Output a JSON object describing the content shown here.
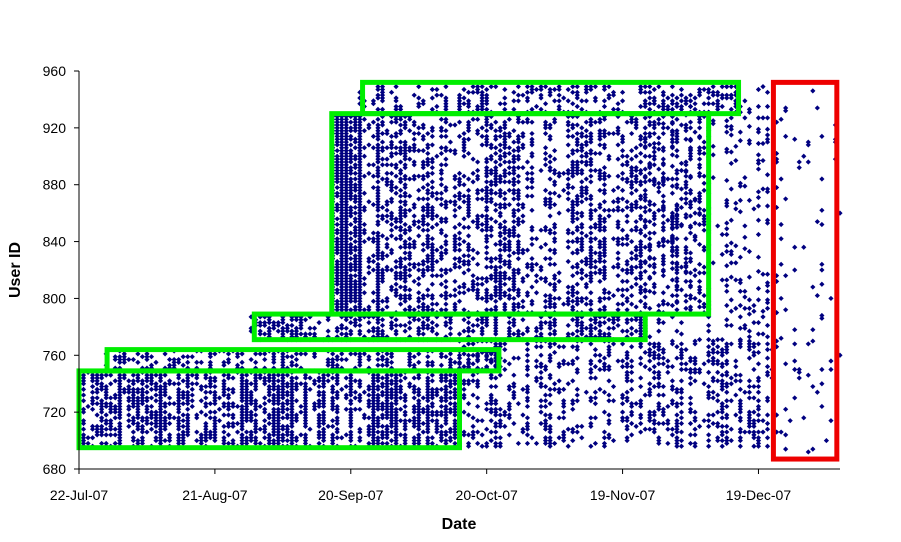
{
  "chart_data": {
    "type": "scatter",
    "title": "",
    "xlabel": "Date",
    "ylabel": "User ID",
    "x_units": "days since 22-Jul-07",
    "xlim": [
      0,
      168
    ],
    "ylim": [
      680,
      960
    ],
    "grid": false,
    "legend": "none",
    "marker": {
      "shape": "diamond",
      "color": "#000080"
    },
    "x_ticks": [
      {
        "value": 0,
        "label": "22-Jul-07"
      },
      {
        "value": 30,
        "label": "21-Aug-07"
      },
      {
        "value": 60,
        "label": "20-Sep-07"
      },
      {
        "value": 90,
        "label": "20-Oct-07"
      },
      {
        "value": 120,
        "label": "19-Nov-07"
      },
      {
        "value": 150,
        "label": "19-Dec-07"
      }
    ],
    "y_ticks": [
      {
        "value": 680,
        "label": "680"
      },
      {
        "value": 720,
        "label": "720"
      },
      {
        "value": 760,
        "label": "760"
      },
      {
        "value": 800,
        "label": "800"
      },
      {
        "value": 840,
        "label": "840"
      },
      {
        "value": 880,
        "label": "880"
      },
      {
        "value": 920,
        "label": "920"
      },
      {
        "value": 960,
        "label": "960"
      }
    ],
    "point_groups": [
      {
        "days": [
          0,
          84
        ],
        "ids": [
          696,
          748
        ],
        "density": 0.55
      },
      {
        "days": [
          6,
          92
        ],
        "ids": [
          749,
          763
        ],
        "density": 0.4
      },
      {
        "days": [
          38,
          125
        ],
        "ids": [
          771,
          788
        ],
        "density": 0.45
      },
      {
        "days": [
          56,
          66
        ],
        "ids": [
          790,
          929
        ],
        "density": 0.75
      },
      {
        "days": [
          66,
          139
        ],
        "ids": [
          790,
          929
        ],
        "density": 0.33
      },
      {
        "days": [
          62,
          145
        ],
        "ids": [
          931,
          950
        ],
        "density": 0.3
      },
      {
        "days": [
          84,
          152
        ],
        "ids": [
          696,
          770
        ],
        "density": 0.3
      },
      {
        "days": [
          125,
          152
        ],
        "ids": [
          771,
          950
        ],
        "density": 0.15
      },
      {
        "days": [
          152,
          168
        ],
        "ids": [
          690,
          950
        ],
        "density": 0.05
      }
    ],
    "annotations": [
      {
        "shape": "rect",
        "color": "#00ee00",
        "days": [
          0,
          84
        ],
        "ids": [
          695,
          749
        ]
      },
      {
        "shape": "rect",
        "color": "#00ee00",
        "days": [
          6.2,
          92.7
        ],
        "ids": [
          749,
          764
        ]
      },
      {
        "shape": "rect",
        "color": "#00ee00",
        "days": [
          38.7,
          125
        ],
        "ids": [
          771,
          789
        ]
      },
      {
        "shape": "rect",
        "color": "#00ee00",
        "days": [
          55.8,
          139
        ],
        "ids": [
          789,
          930
        ]
      },
      {
        "shape": "rect",
        "color": "#00ee00",
        "days": [
          62.6,
          145.6
        ],
        "ids": [
          930,
          952
        ]
      },
      {
        "shape": "rect",
        "color": "#ee0000",
        "days": [
          153.3,
          167.3
        ],
        "ids": [
          687,
          952
        ]
      }
    ]
  }
}
